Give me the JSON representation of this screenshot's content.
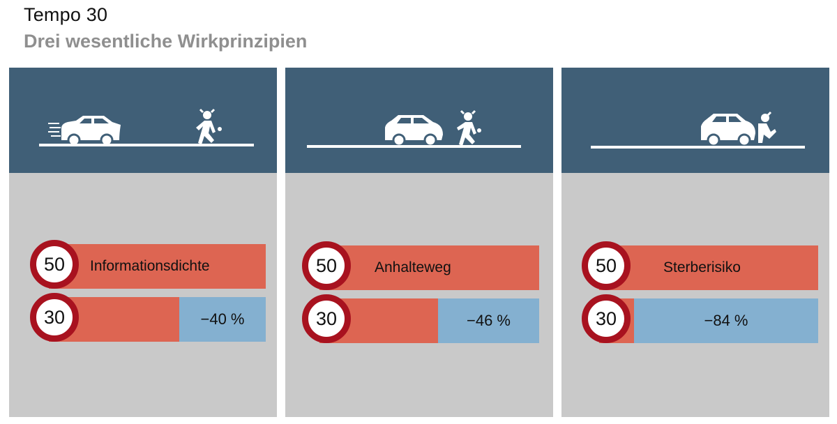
{
  "title": "Tempo 30",
  "subtitle": "Drei wesentliche Wirkprinzipien",
  "colors": {
    "panel_top": "#405f77",
    "panel_bottom": "#c9c9c9",
    "bar_red": "#dd6552",
    "bar_blue": "#84b0d0",
    "sign_ring": "#a8121f"
  },
  "chart_data": {
    "type": "bar",
    "title": "Tempo 30",
    "subtitle": "Drei wesentliche Wirkprinzipien",
    "categories": [
      "Informationsdichte",
      "Anhalteweg",
      "Sterberisiko"
    ],
    "series": [
      {
        "name": "50",
        "values": [
          100,
          100,
          100
        ]
      },
      {
        "name": "30",
        "values": [
          60,
          54,
          16
        ]
      }
    ],
    "reduction_labels": [
      "−40 %",
      "−46 %",
      "−84 %"
    ],
    "unit": "%",
    "ylim": [
      0,
      100
    ]
  },
  "panels": [
    {
      "scene_icons": [
        "car-icon",
        "pedestrian-icon",
        "road-line-icon"
      ]
    },
    {
      "scene_icons": [
        "car-icon",
        "pedestrian-icon",
        "road-line-icon"
      ]
    },
    {
      "scene_icons": [
        "car-icon",
        "pedestrian-icon",
        "road-line-icon"
      ]
    }
  ]
}
